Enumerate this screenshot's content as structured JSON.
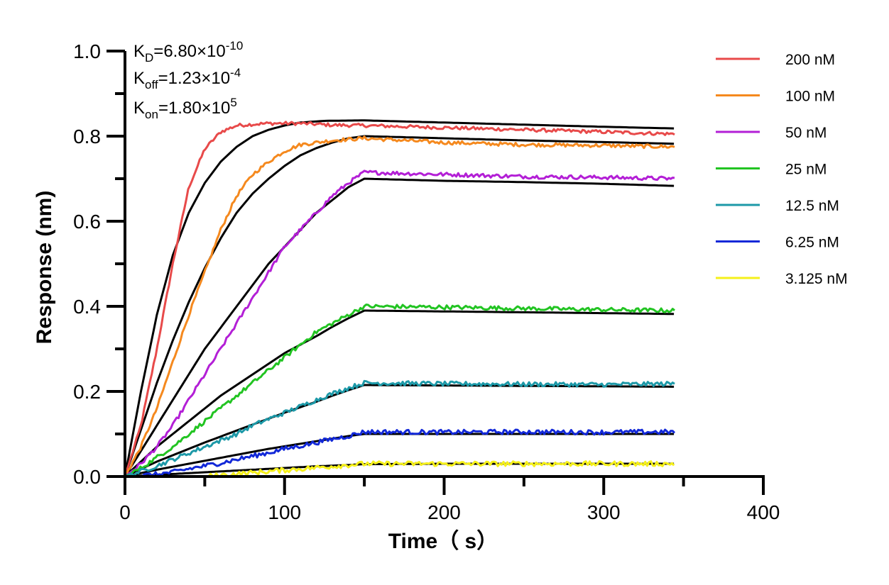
{
  "kinetics": {
    "kd": {
      "k": "K",
      "sub": "D",
      "mid": "=6.80×10",
      "sup": "-10"
    },
    "koff": {
      "k": "K",
      "sub": "off",
      "mid": "=1.23×10",
      "sup": "-4"
    },
    "kon": {
      "k": "K",
      "sub": "on",
      "mid": "=1.80×10",
      "sup": "5"
    }
  },
  "chart_data": {
    "type": "line",
    "xlabel": "Time（ s）",
    "ylabel": "Response (nm)",
    "xlim": [
      0,
      400
    ],
    "ylim": [
      0,
      1.0
    ],
    "x_ticks": [
      0,
      100,
      200,
      300,
      400
    ],
    "x_tick_labels": [
      "0",
      "100",
      "200",
      "300",
      "400"
    ],
    "y_ticks": [
      0,
      0.2,
      0.4,
      0.6,
      0.8,
      1.0
    ],
    "y_tick_labels": [
      "0.0",
      "0.2",
      "0.4",
      "0.6",
      "0.8",
      "1.0"
    ],
    "legend_position": "top-right",
    "association_end_s": 150,
    "end_s": 345,
    "fit_color": "#000000",
    "series": [
      {
        "name": "200 nM",
        "color": "#e84a4a",
        "observed": [
          [
            0,
            0
          ],
          [
            10,
            0.12
          ],
          [
            20,
            0.3
          ],
          [
            30,
            0.5
          ],
          [
            40,
            0.68
          ],
          [
            50,
            0.77
          ],
          [
            60,
            0.81
          ],
          [
            70,
            0.825
          ],
          [
            80,
            0.828
          ],
          [
            90,
            0.83
          ],
          [
            100,
            0.83
          ],
          [
            110,
            0.83
          ],
          [
            120,
            0.828
          ],
          [
            130,
            0.826
          ],
          [
            150,
            0.825
          ],
          [
            200,
            0.82
          ],
          [
            250,
            0.815
          ],
          [
            300,
            0.81
          ],
          [
            345,
            0.805
          ]
        ],
        "fit": [
          [
            0,
            0
          ],
          [
            10,
            0.2
          ],
          [
            20,
            0.38
          ],
          [
            30,
            0.52
          ],
          [
            40,
            0.62
          ],
          [
            50,
            0.69
          ],
          [
            60,
            0.74
          ],
          [
            70,
            0.775
          ],
          [
            80,
            0.8
          ],
          [
            90,
            0.815
          ],
          [
            100,
            0.825
          ],
          [
            110,
            0.832
          ],
          [
            125,
            0.836
          ],
          [
            150,
            0.837
          ],
          [
            200,
            0.832
          ],
          [
            250,
            0.827
          ],
          [
            300,
            0.822
          ],
          [
            345,
            0.818
          ]
        ]
      },
      {
        "name": "100 nM",
        "color": "#f5891e",
        "observed": [
          [
            0,
            0
          ],
          [
            10,
            0.07
          ],
          [
            20,
            0.16
          ],
          [
            30,
            0.27
          ],
          [
            40,
            0.38
          ],
          [
            50,
            0.48
          ],
          [
            60,
            0.58
          ],
          [
            70,
            0.66
          ],
          [
            80,
            0.71
          ],
          [
            90,
            0.74
          ],
          [
            100,
            0.765
          ],
          [
            110,
            0.78
          ],
          [
            120,
            0.785
          ],
          [
            130,
            0.79
          ],
          [
            150,
            0.795
          ],
          [
            200,
            0.785
          ],
          [
            250,
            0.78
          ],
          [
            300,
            0.778
          ],
          [
            345,
            0.775
          ]
        ],
        "fit": [
          [
            0,
            0
          ],
          [
            10,
            0.11
          ],
          [
            20,
            0.22
          ],
          [
            30,
            0.32
          ],
          [
            40,
            0.41
          ],
          [
            50,
            0.49
          ],
          [
            60,
            0.56
          ],
          [
            70,
            0.62
          ],
          [
            80,
            0.665
          ],
          [
            90,
            0.7
          ],
          [
            100,
            0.73
          ],
          [
            110,
            0.755
          ],
          [
            120,
            0.772
          ],
          [
            130,
            0.785
          ],
          [
            140,
            0.795
          ],
          [
            150,
            0.8
          ],
          [
            200,
            0.795
          ],
          [
            250,
            0.79
          ],
          [
            300,
            0.786
          ],
          [
            345,
            0.782
          ]
        ]
      },
      {
        "name": "50 nM",
        "color": "#b31fd6",
        "observed": [
          [
            0,
            0
          ],
          [
            10,
            0.03
          ],
          [
            20,
            0.07
          ],
          [
            30,
            0.12
          ],
          [
            40,
            0.18
          ],
          [
            50,
            0.24
          ],
          [
            60,
            0.3
          ],
          [
            70,
            0.36
          ],
          [
            80,
            0.42
          ],
          [
            90,
            0.48
          ],
          [
            100,
            0.54
          ],
          [
            110,
            0.58
          ],
          [
            120,
            0.62
          ],
          [
            130,
            0.66
          ],
          [
            140,
            0.69
          ],
          [
            150,
            0.715
          ],
          [
            200,
            0.71
          ],
          [
            250,
            0.705
          ],
          [
            300,
            0.703
          ],
          [
            345,
            0.7
          ]
        ],
        "fit": [
          [
            0,
            0
          ],
          [
            10,
            0.06
          ],
          [
            20,
            0.12
          ],
          [
            30,
            0.18
          ],
          [
            40,
            0.24
          ],
          [
            50,
            0.3
          ],
          [
            60,
            0.35
          ],
          [
            70,
            0.4
          ],
          [
            80,
            0.45
          ],
          [
            90,
            0.5
          ],
          [
            100,
            0.54
          ],
          [
            110,
            0.58
          ],
          [
            120,
            0.62
          ],
          [
            130,
            0.65
          ],
          [
            140,
            0.68
          ],
          [
            150,
            0.7
          ],
          [
            200,
            0.695
          ],
          [
            250,
            0.692
          ],
          [
            300,
            0.688
          ],
          [
            345,
            0.683
          ]
        ]
      },
      {
        "name": "25 nM",
        "color": "#22c422",
        "observed": [
          [
            0,
            0
          ],
          [
            10,
            0.02
          ],
          [
            20,
            0.045
          ],
          [
            30,
            0.07
          ],
          [
            40,
            0.1
          ],
          [
            50,
            0.13
          ],
          [
            60,
            0.16
          ],
          [
            70,
            0.19
          ],
          [
            80,
            0.22
          ],
          [
            90,
            0.25
          ],
          [
            100,
            0.28
          ],
          [
            110,
            0.31
          ],
          [
            120,
            0.34
          ],
          [
            130,
            0.36
          ],
          [
            140,
            0.38
          ],
          [
            150,
            0.4
          ],
          [
            200,
            0.398
          ],
          [
            250,
            0.395
          ],
          [
            300,
            0.392
          ],
          [
            345,
            0.39
          ]
        ],
        "fit": [
          [
            0,
            0
          ],
          [
            10,
            0.035
          ],
          [
            20,
            0.07
          ],
          [
            30,
            0.1
          ],
          [
            40,
            0.13
          ],
          [
            50,
            0.16
          ],
          [
            60,
            0.19
          ],
          [
            70,
            0.215
          ],
          [
            80,
            0.24
          ],
          [
            90,
            0.265
          ],
          [
            100,
            0.29
          ],
          [
            110,
            0.31
          ],
          [
            120,
            0.33
          ],
          [
            130,
            0.352
          ],
          [
            140,
            0.372
          ],
          [
            150,
            0.39
          ],
          [
            200,
            0.388
          ],
          [
            250,
            0.386
          ],
          [
            300,
            0.384
          ],
          [
            345,
            0.382
          ]
        ]
      },
      {
        "name": "12.5 nM",
        "color": "#1d99a8",
        "observed": [
          [
            0,
            0
          ],
          [
            10,
            0.012
          ],
          [
            20,
            0.025
          ],
          [
            30,
            0.04
          ],
          [
            40,
            0.055
          ],
          [
            50,
            0.07
          ],
          [
            60,
            0.085
          ],
          [
            70,
            0.1
          ],
          [
            80,
            0.12
          ],
          [
            90,
            0.135
          ],
          [
            100,
            0.15
          ],
          [
            110,
            0.165
          ],
          [
            120,
            0.18
          ],
          [
            130,
            0.195
          ],
          [
            140,
            0.208
          ],
          [
            150,
            0.22
          ],
          [
            200,
            0.218
          ],
          [
            250,
            0.217
          ],
          [
            300,
            0.216
          ],
          [
            345,
            0.218
          ]
        ],
        "fit": [
          [
            0,
            0
          ],
          [
            10,
            0.018
          ],
          [
            20,
            0.035
          ],
          [
            30,
            0.05
          ],
          [
            40,
            0.065
          ],
          [
            50,
            0.08
          ],
          [
            60,
            0.094
          ],
          [
            70,
            0.108
          ],
          [
            80,
            0.122
          ],
          [
            90,
            0.136
          ],
          [
            100,
            0.15
          ],
          [
            110,
            0.163
          ],
          [
            120,
            0.176
          ],
          [
            130,
            0.19
          ],
          [
            140,
            0.203
          ],
          [
            150,
            0.215
          ],
          [
            200,
            0.214
          ],
          [
            250,
            0.213
          ],
          [
            300,
            0.212
          ],
          [
            345,
            0.211
          ]
        ]
      },
      {
        "name": "6.25 nM",
        "color": "#1228d8",
        "observed": [
          [
            0,
            0
          ],
          [
            10,
            0.002
          ],
          [
            20,
            0.005
          ],
          [
            30,
            0.01
          ],
          [
            40,
            0.018
          ],
          [
            50,
            0.025
          ],
          [
            60,
            0.032
          ],
          [
            70,
            0.04
          ],
          [
            80,
            0.048
          ],
          [
            90,
            0.056
          ],
          [
            100,
            0.065
          ],
          [
            110,
            0.072
          ],
          [
            120,
            0.08
          ],
          [
            130,
            0.088
          ],
          [
            140,
            0.095
          ],
          [
            150,
            0.105
          ],
          [
            200,
            0.104
          ],
          [
            250,
            0.105
          ],
          [
            300,
            0.104
          ],
          [
            345,
            0.105
          ]
        ],
        "fit": [
          [
            0,
            0
          ],
          [
            10,
            0.008
          ],
          [
            20,
            0.016
          ],
          [
            30,
            0.023
          ],
          [
            40,
            0.03
          ],
          [
            50,
            0.037
          ],
          [
            60,
            0.044
          ],
          [
            70,
            0.051
          ],
          [
            80,
            0.058
          ],
          [
            90,
            0.065
          ],
          [
            100,
            0.071
          ],
          [
            110,
            0.077
          ],
          [
            120,
            0.083
          ],
          [
            130,
            0.089
          ],
          [
            140,
            0.095
          ],
          [
            150,
            0.1
          ],
          [
            200,
            0.1
          ],
          [
            250,
            0.1
          ],
          [
            300,
            0.1
          ],
          [
            345,
            0.1
          ]
        ]
      },
      {
        "name": "3.125 nM",
        "color": "#f5f01a",
        "observed": [
          [
            50,
            0
          ],
          [
            60,
            0.003
          ],
          [
            70,
            0.006
          ],
          [
            80,
            0.009
          ],
          [
            90,
            0.012
          ],
          [
            100,
            0.015
          ],
          [
            110,
            0.018
          ],
          [
            120,
            0.021
          ],
          [
            130,
            0.024
          ],
          [
            140,
            0.027
          ],
          [
            150,
            0.03
          ],
          [
            200,
            0.03
          ],
          [
            250,
            0.03
          ],
          [
            300,
            0.03
          ],
          [
            345,
            0.03
          ]
        ],
        "fit": [
          [
            0,
            0
          ],
          [
            20,
            0.004
          ],
          [
            40,
            0.008
          ],
          [
            60,
            0.012
          ],
          [
            80,
            0.016
          ],
          [
            100,
            0.02
          ],
          [
            120,
            0.024
          ],
          [
            140,
            0.027
          ],
          [
            150,
            0.029
          ],
          [
            200,
            0.03
          ],
          [
            250,
            0.03
          ],
          [
            300,
            0.03
          ],
          [
            345,
            0.03
          ]
        ]
      }
    ]
  }
}
